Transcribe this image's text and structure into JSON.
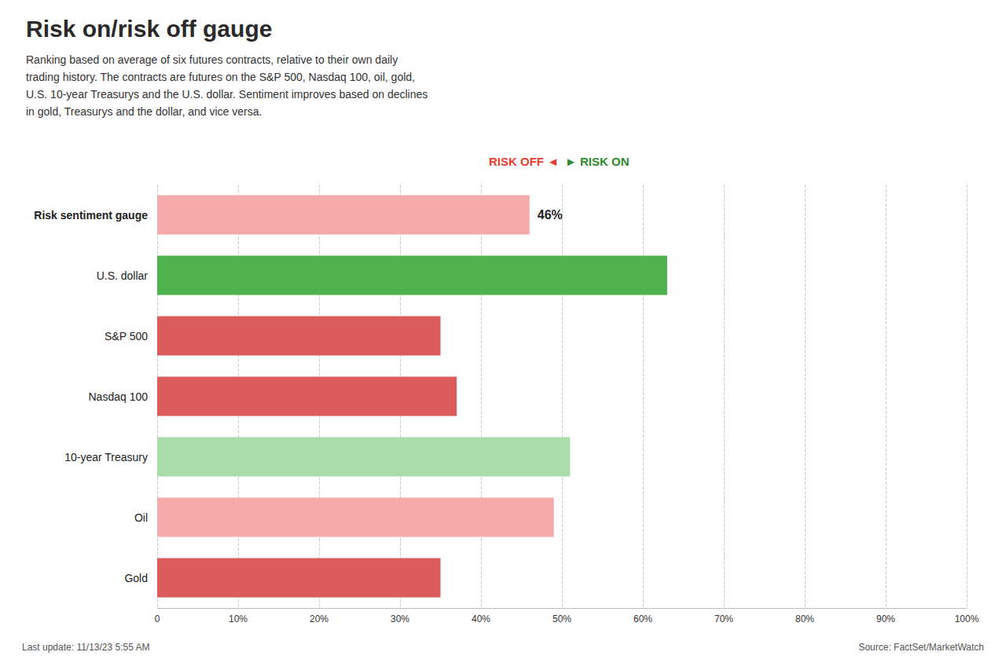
{
  "chart_data": {
    "type": "bar",
    "orientation": "horizontal",
    "title": "Risk on/risk off gauge",
    "subtitle": "Ranking based on average of six futures contracts, relative to their own daily\ntrading history. The contracts are futures on the S&P 500, Nasdaq 100, oil, gold,\nU.S. 10-year Treasurys and the U.S. dollar. Sentiment improves based on declines\nin gold, Treasurys and the dollar, and vice versa.",
    "categories": [
      "Risk sentiment gauge",
      "U.S. dollar",
      "S&P 500",
      "Nasdaq 100",
      "10-year Treasury",
      "Oil",
      "Gold"
    ],
    "values": [
      46,
      63,
      35,
      37,
      51,
      49,
      35
    ],
    "colors": [
      "#f5aaaa",
      "#4db14d",
      "#d95b5b",
      "#d95b5b",
      "#aadcaa",
      "#f5aaaa",
      "#d95b5b"
    ],
    "xlim": [
      0,
      100
    ],
    "xticks": [
      0,
      {
        "value": 10,
        "label": "10%"
      },
      {
        "value": 20,
        "label": "20%"
      },
      {
        "value": 30,
        "label": "30%"
      },
      {
        "value": 40,
        "label": "40%"
      },
      {
        "value": 50,
        "label": "50%"
      },
      {
        "value": 60,
        "label": "60%"
      },
      {
        "value": 70,
        "label": "70%"
      },
      {
        "value": 80,
        "label": "80%"
      },
      {
        "value": 90,
        "label": "90%"
      },
      {
        "value": 100,
        "label": "100%"
      }
    ],
    "grid": true,
    "annotations": [
      {
        "text": "46%",
        "category": "Risk sentiment gauge",
        "value": 46
      }
    ],
    "scale_labels": [
      {
        "text": "RISK OFF ◄",
        "color": "#e84030"
      },
      {
        "text": "► RISK ON",
        "color": "#2e8b2e"
      }
    ],
    "footer_left": "Last update: 11/13/23 5:55 AM",
    "footer_right": "Source: FactSet/MarketWatch"
  }
}
